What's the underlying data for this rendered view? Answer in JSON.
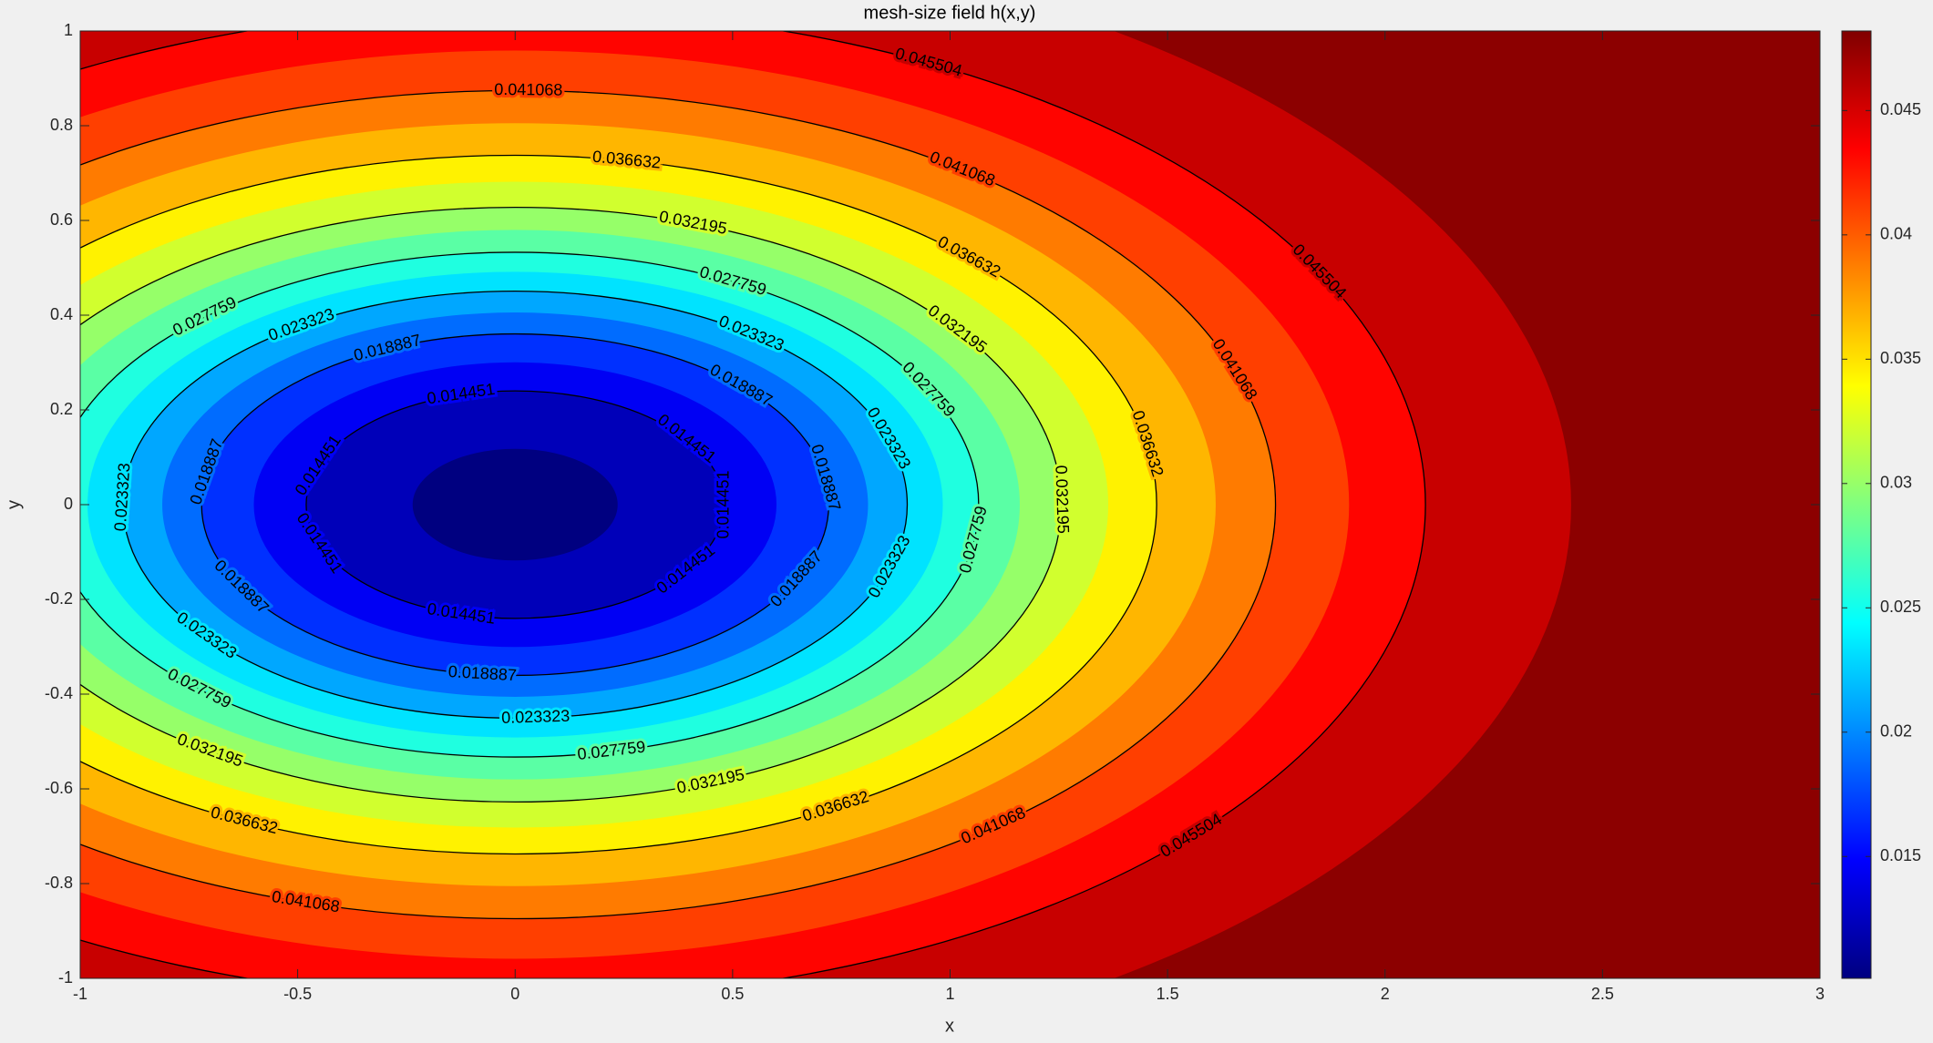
{
  "chart_data": {
    "type": "contour",
    "title": "mesh-size field h(x,y)",
    "x_label": "x",
    "y_label": "y",
    "xlim": [
      -1,
      3
    ],
    "ylim": [
      -1,
      1
    ],
    "xticks": [
      -1,
      -0.5,
      0,
      0.5,
      1,
      1.5,
      2,
      2.5,
      3
    ],
    "yticks": [
      -1,
      -0.8,
      -0.6,
      -0.4,
      -0.2,
      0,
      0.2,
      0.4,
      0.6,
      0.8,
      1
    ],
    "levels": [
      0.014451,
      0.018887,
      0.023323,
      0.027759,
      0.032195,
      0.036632,
      0.041068,
      0.045504
    ],
    "clim": [
      0.0101,
      0.0482
    ],
    "colorbar_ticks": [
      0.015,
      0.02,
      0.025,
      0.03,
      0.035,
      0.04,
      0.045
    ],
    "colormap": "jet",
    "line_color": "#000000"
  }
}
